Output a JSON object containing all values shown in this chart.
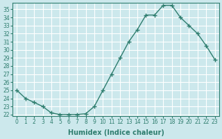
{
  "x": [
    0,
    1,
    2,
    3,
    4,
    5,
    6,
    7,
    8,
    9,
    10,
    11,
    12,
    13,
    14,
    15,
    16,
    17,
    18,
    19,
    20,
    21,
    22,
    23
  ],
  "y": [
    25.0,
    24.0,
    23.5,
    23.0,
    22.2,
    22.0,
    22.0,
    22.0,
    22.1,
    23.0,
    25.0,
    27.0,
    29.0,
    31.0,
    32.5,
    34.3,
    34.3,
    35.5,
    35.5,
    34.0,
    33.0,
    32.0,
    30.5,
    28.8
  ],
  "line_color": "#2e7d6e",
  "marker": "+",
  "bg_color": "#cce8ec",
  "grid_color_main": "#b0d8dc",
  "grid_color_sub": "#e8b8b8",
  "xlabel": "Humidex (Indice chaleur)",
  "ylim": [
    21.8,
    35.8
  ],
  "xlim": [
    -0.5,
    23.5
  ],
  "yticks": [
    22,
    23,
    24,
    25,
    26,
    27,
    28,
    29,
    30,
    31,
    32,
    33,
    34,
    35
  ],
  "xticks": [
    0,
    1,
    2,
    3,
    4,
    5,
    6,
    7,
    8,
    9,
    10,
    11,
    12,
    13,
    14,
    15,
    16,
    17,
    18,
    19,
    20,
    21,
    22,
    23
  ],
  "tick_fontsize": 5.5,
  "xlabel_fontsize": 7
}
